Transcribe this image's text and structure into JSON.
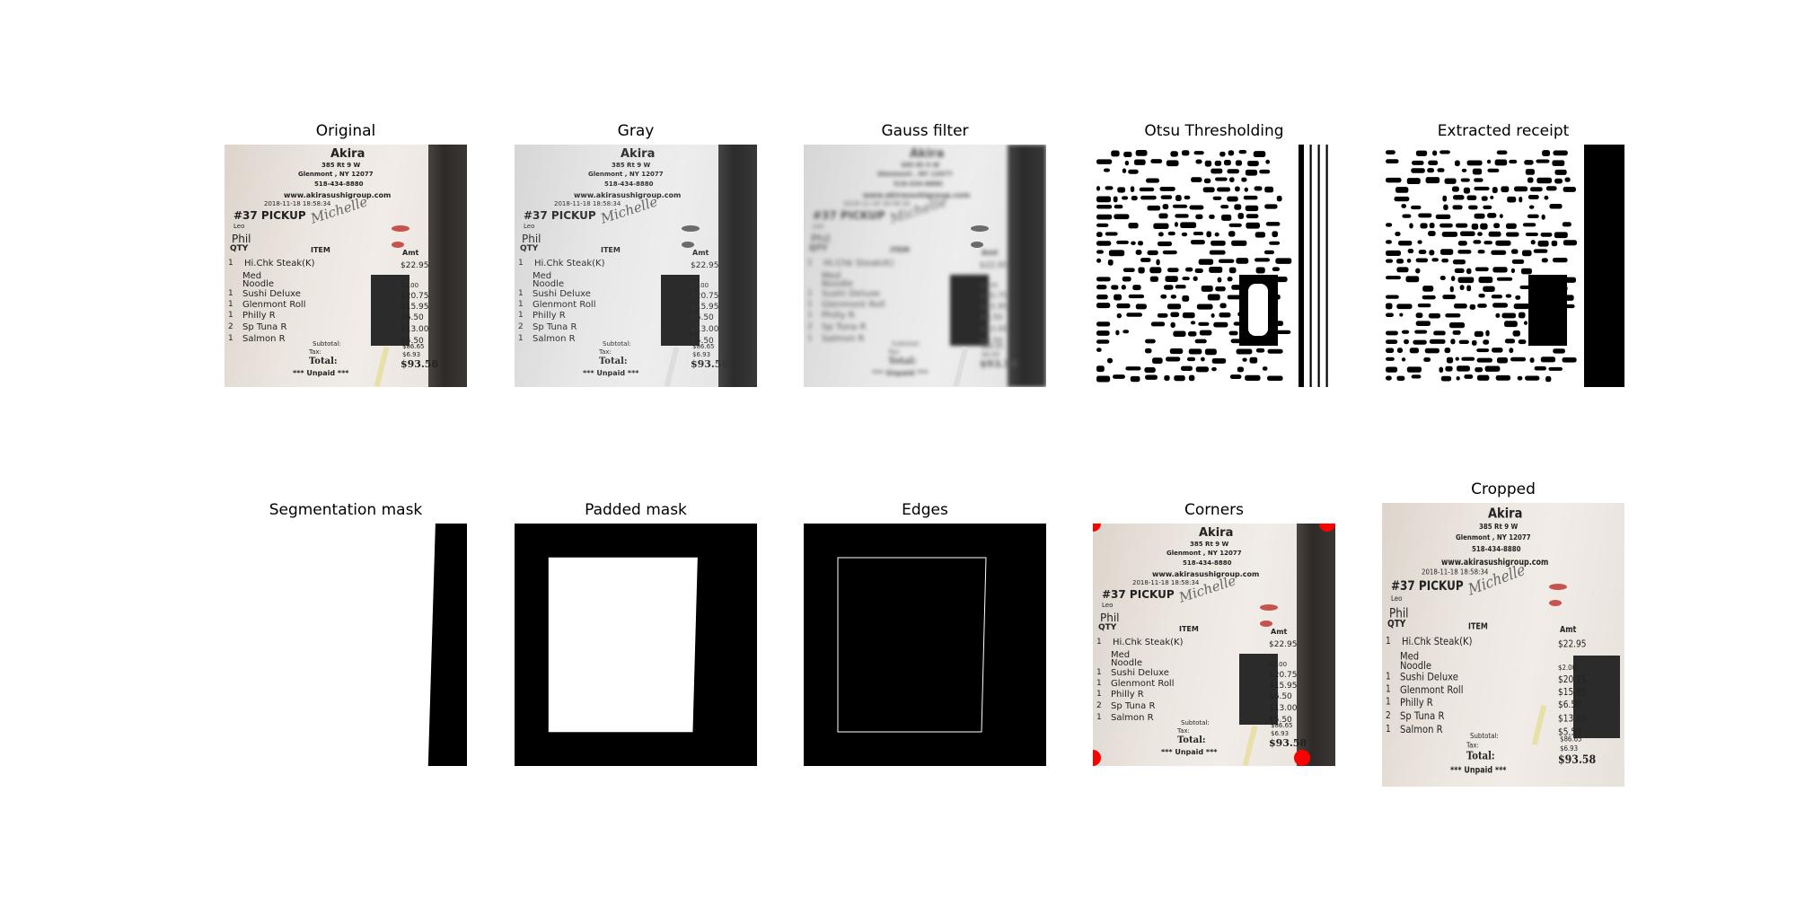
{
  "figure": {
    "panels": [
      {
        "id": "original",
        "title": "Original"
      },
      {
        "id": "gray",
        "title": "Gray"
      },
      {
        "id": "gauss",
        "title": "Gauss filter"
      },
      {
        "id": "otsu",
        "title": "Otsu Thresholding"
      },
      {
        "id": "extracted",
        "title": "Extracted receipt"
      },
      {
        "id": "segmentation",
        "title": "Segmentation mask"
      },
      {
        "id": "padded",
        "title": "Padded mask"
      },
      {
        "id": "edges",
        "title": "Edges"
      },
      {
        "id": "corners",
        "title": "Corners"
      },
      {
        "id": "cropped",
        "title": "Cropped"
      }
    ]
  },
  "receipt": {
    "store": "Akira",
    "address1": "385 Rt 9 W",
    "address2": "Glenmont , NY 12077",
    "phone": "518-434-8880",
    "website": "www.akirasushigroup.com",
    "datetime": "2018-11-18 18:58:34",
    "order": "#37 PICKUP",
    "server": "Leo",
    "signature": "Michelle",
    "customer": "Phil",
    "col_qty": "QTY",
    "col_item": "ITEM",
    "col_amt": "Amt",
    "items": [
      {
        "qty": "1",
        "name": "Hi.Chk Steak(K)",
        "amt": "$22.95"
      },
      {
        "qty": "",
        "name": "Med",
        "amt": ""
      },
      {
        "qty": "",
        "name": "Noodle",
        "amt": "$2.00"
      },
      {
        "qty": "1",
        "name": "Sushi Deluxe",
        "amt": "$20.75"
      },
      {
        "qty": "1",
        "name": "Glenmont  Roll",
        "amt": "$15.95"
      },
      {
        "qty": "1",
        "name": "Philly R",
        "amt": "$6.50"
      },
      {
        "qty": "2",
        "name": "Sp Tuna R",
        "amt": "$13.00"
      },
      {
        "qty": "1",
        "name": "Salmon R",
        "amt": "$5.50"
      }
    ],
    "subtotal_label": "Subtotal:",
    "subtotal": "$86.65",
    "tax_label": "Tax:",
    "tax": "$6.93",
    "total_label": "Total:",
    "total": "$93.58",
    "status": "*** Unpaid ***"
  },
  "colors": {
    "corner_marker": "#ff0000"
  }
}
